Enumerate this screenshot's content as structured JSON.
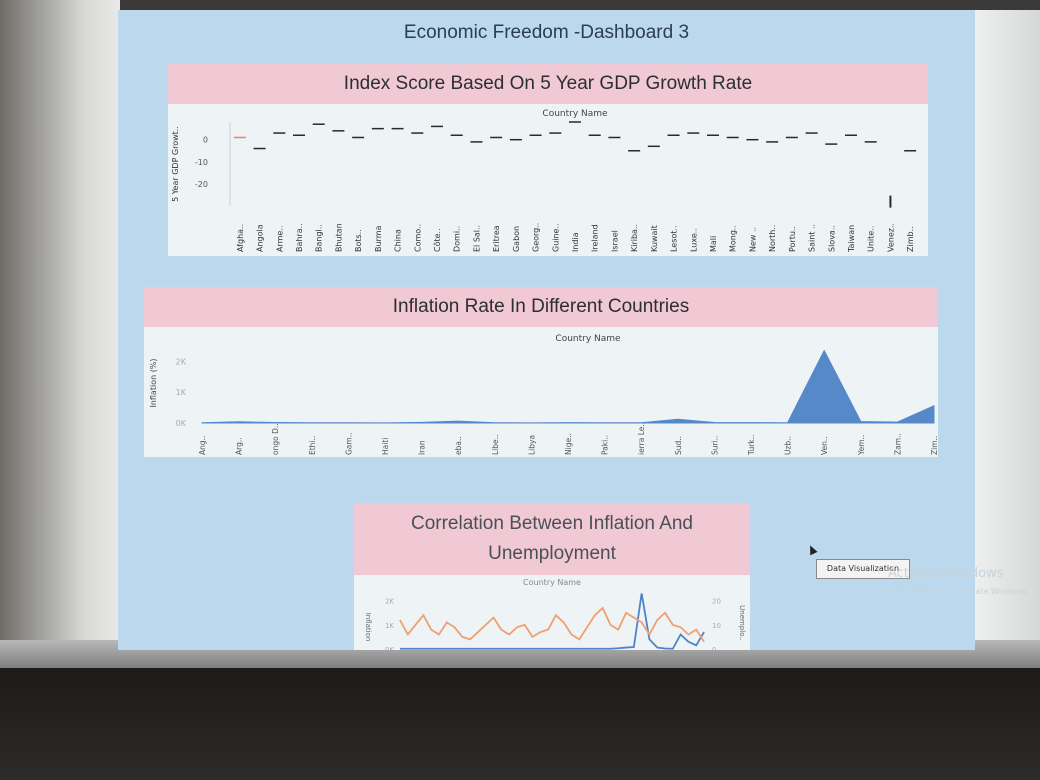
{
  "dashboard": {
    "title": "Economic Freedom -Dashboard 3",
    "tooltip": "Data Visualization",
    "watermark": "Activate Windows",
    "watermark_sub": "Go to Settings to activate Windows."
  },
  "colors": {
    "dashboard_bg": "#bcd8ec",
    "title_band": "#f0c9d4",
    "area_fill": "#4d84c8",
    "line_blue": "#4d84c8",
    "line_orange": "#f0a070",
    "gdp_first": "#e8855a"
  },
  "chart_data": [
    {
      "type": "scatter",
      "title": "Index Score Based On 5 Year GDP Growth Rate",
      "header": "Country Name",
      "ylabel": "5 Year GDP Growt..",
      "yticks": [
        0,
        -10,
        -20
      ],
      "ylim": [
        -30,
        8
      ],
      "categories": [
        "Afgha..",
        "Angola",
        "Arme..",
        "Bahra..",
        "Bangl..",
        "Bhutan",
        "Bots..",
        "Burma",
        "China",
        "Como..",
        "Côte..",
        "Domi..",
        "El Sal..",
        "Eritrea",
        "Gabon",
        "Georg..",
        "Guine..",
        "India",
        "Ireland",
        "Israel",
        "Kiriba..",
        "Kuwait",
        "Lesot..",
        "Luxe..",
        "Mali",
        "Mong..",
        "New ..",
        "North..",
        "Portu..",
        "Saint ..",
        "Slova..",
        "Taiwan",
        "Unite..",
        "Venez..",
        "Zimb.."
      ],
      "values": [
        1,
        -4,
        3,
        2,
        7,
        4,
        1,
        5,
        5,
        3,
        6,
        2,
        -1,
        1,
        0,
        2,
        3,
        8,
        2,
        1,
        -5,
        -3,
        2,
        3,
        2,
        1,
        0,
        -1,
        1,
        3,
        -2,
        2,
        -1,
        -28,
        -5
      ]
    },
    {
      "type": "area",
      "title": "Inflation Rate In Different Countries",
      "header": "Country Name",
      "ylabel": "Inflation (%)",
      "yticks": [
        "2K",
        "1K",
        "0K"
      ],
      "ytick_values": [
        2000,
        1000,
        0
      ],
      "ylim": [
        0,
        2400
      ],
      "categories": [
        "Ang..",
        "Arg..",
        "ongo D..",
        "Ethi..",
        "Gam..",
        "Haiti",
        "Iran",
        "eba..",
        "Libe..",
        "Libya",
        "Nige..",
        "Paki..",
        "ierra Le..",
        "Sud..",
        "Suri..",
        "Turk..",
        "Uzb..",
        "Ven..",
        "Yem..",
        "Zam..",
        "Zim.."
      ],
      "values": [
        10,
        40,
        15,
        10,
        8,
        5,
        20,
        60,
        10,
        5,
        12,
        8,
        10,
        120,
        15,
        12,
        10,
        2350,
        50,
        30,
        560
      ]
    },
    {
      "type": "line",
      "title": "Correlation Between Inflation And Unemployment",
      "header": "Country Name",
      "ylabel": "Inflation",
      "y2label": "Unemplo..",
      "yticks": [
        "2K",
        "1K",
        "0K"
      ],
      "y2ticks": [
        "20",
        "10",
        "0"
      ],
      "x": [
        1,
        2,
        3,
        4,
        5,
        6,
        7,
        8,
        9,
        10,
        11,
        12,
        13,
        14,
        15,
        16,
        17,
        18,
        19,
        20,
        21,
        22,
        23,
        24,
        25,
        26,
        27,
        28,
        29,
        30,
        31,
        32,
        33,
        34,
        35,
        36,
        37,
        38,
        39,
        40
      ],
      "series": [
        {
          "name": "Inflation",
          "axis": "left",
          "values": [
            10,
            10,
            10,
            10,
            10,
            10,
            10,
            10,
            10,
            10,
            10,
            10,
            10,
            10,
            10,
            10,
            10,
            10,
            10,
            10,
            10,
            10,
            10,
            10,
            10,
            10,
            10,
            10,
            30,
            60,
            80,
            2300,
            400,
            60,
            20,
            10,
            600,
            300,
            150,
            700
          ]
        },
        {
          "name": "Unemployment",
          "axis": "right",
          "values": [
            12,
            6,
            10,
            14,
            8,
            6,
            11,
            9,
            5,
            4,
            7,
            10,
            13,
            8,
            6,
            9,
            10,
            5,
            7,
            8,
            14,
            11,
            6,
            4,
            9,
            14,
            17,
            10,
            8,
            15,
            13,
            11,
            6,
            12,
            15,
            10,
            9,
            6,
            8,
            3
          ]
        }
      ]
    }
  ]
}
